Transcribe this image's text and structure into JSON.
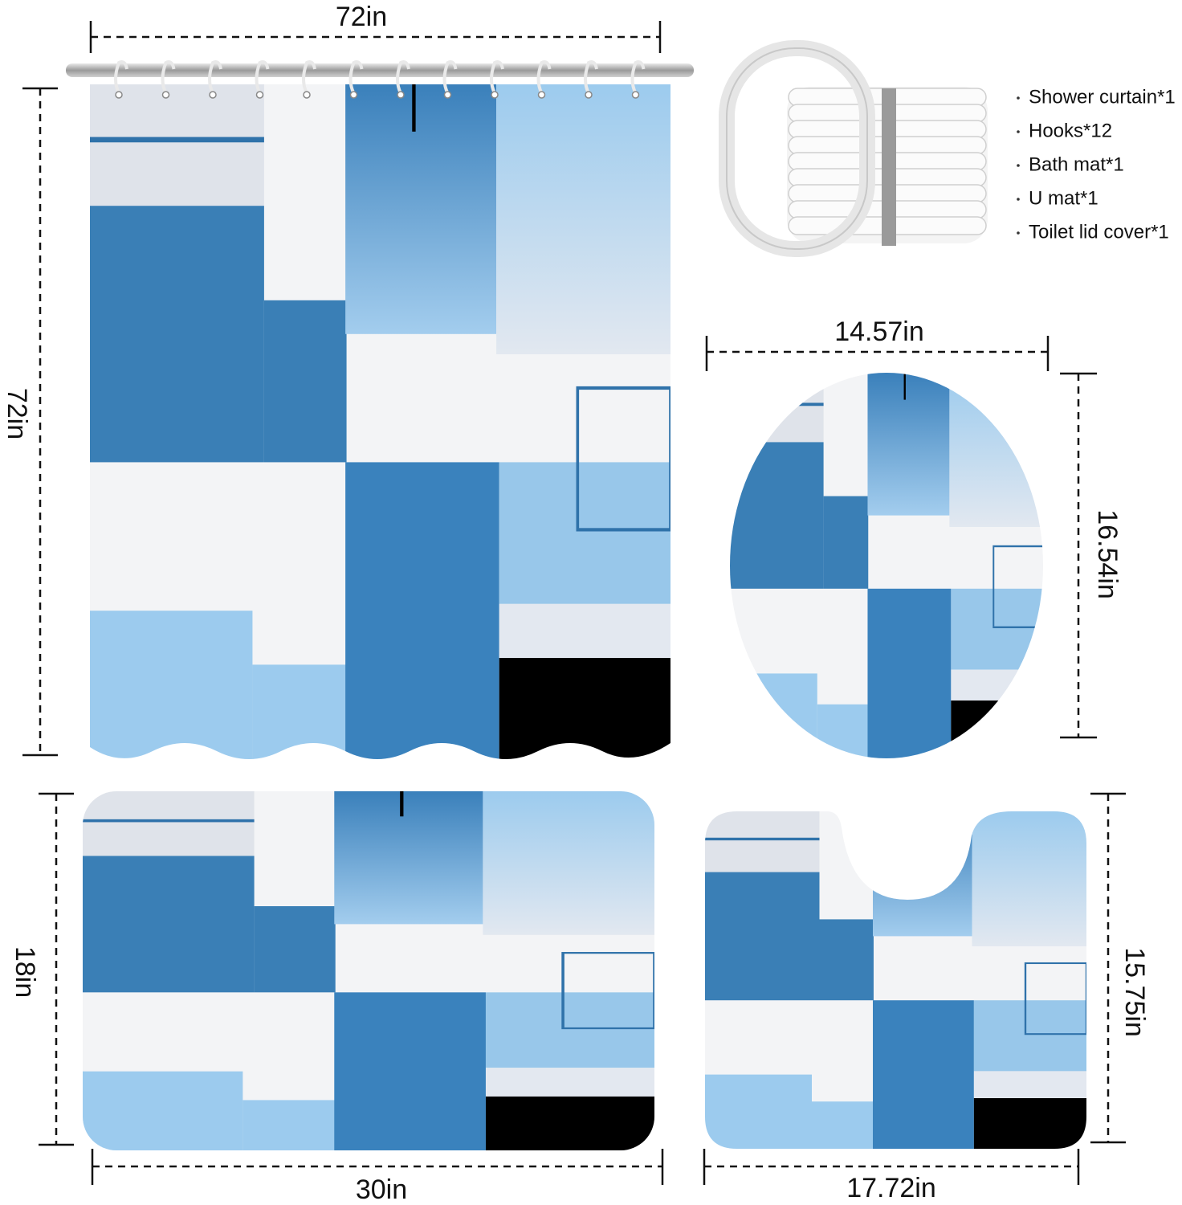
{
  "dimensions": {
    "curtain_width": "72in",
    "curtain_height": "72in",
    "lid_width": "14.57in",
    "lid_height": "16.54in",
    "bath_mat_height": "18in",
    "bath_mat_width": "30in",
    "u_mat_height": "15.75in",
    "u_mat_width": "17.72in"
  },
  "package_contents": [
    "Shower curtain*1",
    "Hooks*12",
    "Bath mat*1",
    "U mat*1",
    "Toilet lid cover*1"
  ]
}
